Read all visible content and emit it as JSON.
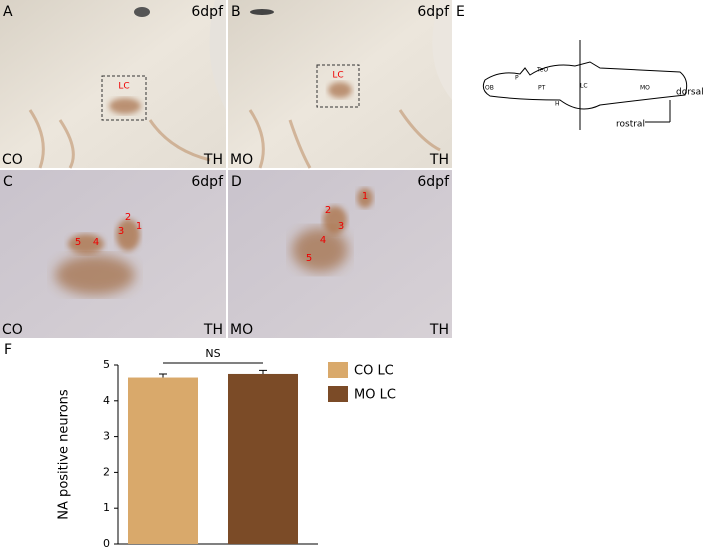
{
  "panels": [
    {
      "letter": "A",
      "stage": "6dpf",
      "condition": "CO",
      "stain": "TH",
      "region": "LC"
    },
    {
      "letter": "B",
      "stage": "6dpf",
      "condition": "MO",
      "stain": "TH",
      "region": "LC"
    },
    {
      "letter": "C",
      "stage": "6dpf",
      "condition": "CO",
      "stain": "TH",
      "neurons": [
        "1",
        "2",
        "3",
        "4",
        "5"
      ]
    },
    {
      "letter": "D",
      "stage": "6dpf",
      "condition": "MO",
      "stain": "TH",
      "neurons": [
        "1",
        "2",
        "3",
        "4",
        "5"
      ]
    }
  ],
  "schematic": {
    "letter": "E",
    "labels": [
      "OB",
      "P",
      "TeO",
      "PT",
      "LC",
      "MO",
      "H"
    ],
    "axes": [
      "dorsal",
      "rostral"
    ]
  },
  "chart_data": {
    "letter": "F",
    "type": "bar",
    "ylabel": "NA positive neurons",
    "annotation": "NS",
    "ylim": [
      0,
      5
    ],
    "yticks": [
      0,
      1,
      2,
      3,
      4,
      5
    ],
    "series": [
      {
        "name": "CO LC",
        "color": "#d9a96b",
        "values": [
          4.65
        ],
        "errors": [
          0.1
        ]
      },
      {
        "name": "MO LC",
        "color": "#7b4b27",
        "values": [
          4.75
        ],
        "errors": [
          0.1
        ]
      }
    ]
  }
}
